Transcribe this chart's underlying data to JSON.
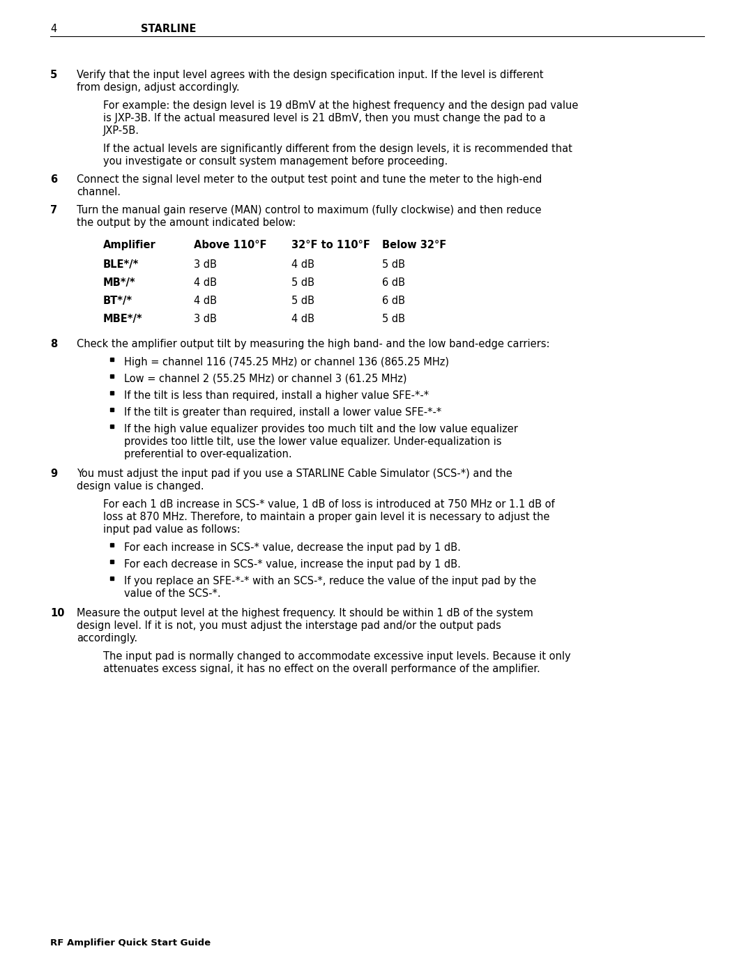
{
  "page_number": "4",
  "header_title": "STARLINE",
  "footer_text": "RF Amplifier Quick Start Guide",
  "background_color": "#ffffff",
  "text_color": "#000000",
  "content_lines": [
    {
      "type": "numbered",
      "num": "5",
      "lines": [
        "Verify that the input level agrees with the design specification input. If the level is different",
        "from design, adjust accordingly."
      ]
    },
    {
      "type": "indent_para",
      "lines": [
        "For example: the design level is 19 dBmV at the highest frequency and the design pad value",
        "is JXP-3B. If the actual measured level is 21 dBmV, then you must change the pad to a",
        "JXP-5B."
      ]
    },
    {
      "type": "indent_para",
      "lines": [
        "If the actual levels are significantly different from the design levels, it is recommended that",
        "you investigate or consult system management before proceeding."
      ]
    },
    {
      "type": "numbered",
      "num": "6",
      "lines": [
        "Connect the signal level meter to the output test point and tune the meter to the high-end",
        "channel."
      ]
    },
    {
      "type": "numbered",
      "num": "7",
      "lines": [
        "Turn the manual gain reserve (MAN) control to maximum (fully clockwise) and then reduce",
        "the output by the amount indicated below:"
      ]
    },
    {
      "type": "table_header",
      "cols": [
        "Amplifier",
        "Above 110°F",
        "32°F to 110°F",
        "Below 32°F"
      ]
    },
    {
      "type": "table_row",
      "bold_first": true,
      "cols": [
        "BLE*/*",
        "3 dB",
        "4 dB",
        "5 dB"
      ]
    },
    {
      "type": "table_row",
      "bold_first": true,
      "cols": [
        "MB*/*",
        "4 dB",
        "5 dB",
        "6 dB"
      ]
    },
    {
      "type": "table_row",
      "bold_first": true,
      "cols": [
        "BT*/*",
        "4 dB",
        "5 dB",
        "6 dB"
      ]
    },
    {
      "type": "table_row",
      "bold_first": true,
      "cols": [
        "MBE*/*",
        "3 dB",
        "4 dB",
        "5 dB"
      ]
    },
    {
      "type": "numbered",
      "num": "8",
      "lines": [
        "Check the amplifier output tilt by measuring the high band- and the low band-edge carriers:"
      ]
    },
    {
      "type": "bullet",
      "lines": [
        "High = channel 116 (745.25 MHz) or channel 136 (865.25 MHz)"
      ]
    },
    {
      "type": "bullet",
      "lines": [
        "Low = channel 2 (55.25 MHz) or channel 3 (61.25 MHz)"
      ]
    },
    {
      "type": "bullet",
      "lines": [
        "If the tilt is less than required, install a higher value SFE-*-*"
      ]
    },
    {
      "type": "bullet",
      "lines": [
        "If the tilt is greater than required, install a lower value SFE-*-*"
      ]
    },
    {
      "type": "bullet",
      "lines": [
        "If the high value equalizer provides too much tilt and the low value equalizer",
        "provides too little tilt, use the lower value equalizer. Under-equalization is",
        "preferential to over-equalization."
      ]
    },
    {
      "type": "numbered",
      "num": "9",
      "lines": [
        "You must adjust the input pad if you use a STARLINE Cable Simulator (SCS-*) and the",
        "design value is changed."
      ]
    },
    {
      "type": "indent_para",
      "lines": [
        "For each 1 dB increase in SCS-* value, 1 dB of loss is introduced at 750 MHz or 1.1 dB of",
        "loss at 870 MHz. Therefore, to maintain a proper gain level it is necessary to adjust the",
        "input pad value as follows:"
      ]
    },
    {
      "type": "bullet",
      "lines": [
        "For each increase in SCS-* value, decrease the input pad by 1 dB."
      ]
    },
    {
      "type": "bullet",
      "lines": [
        "For each decrease in SCS-* value, increase the input pad by 1 dB."
      ]
    },
    {
      "type": "bullet",
      "lines": [
        "If you replace an SFE-*-* with an SCS-*, reduce the value of the input pad by the",
        "value of the SCS-*."
      ]
    },
    {
      "type": "numbered",
      "num": "10",
      "lines": [
        "Measure the output level at the highest frequency. It should be within 1 dB of the system",
        "design level. If it is not, you must adjust the interstage pad and/or the output pads",
        "accordingly."
      ]
    },
    {
      "type": "indent_para",
      "lines": [
        "The input pad is normally changed to accommodate excessive input levels. Because it only",
        "attenuates excess signal, it has no effect on the overall performance of the amplifier."
      ]
    }
  ]
}
